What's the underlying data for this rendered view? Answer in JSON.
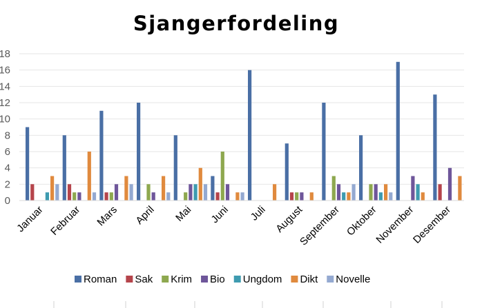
{
  "chart_data": {
    "type": "bar",
    "title": "Sjangerfordeling",
    "xlabel": "",
    "ylabel": "",
    "ylim": [
      0,
      18
    ],
    "yticks": [
      0,
      2,
      4,
      6,
      8,
      10,
      12,
      14,
      16,
      18
    ],
    "grid": true,
    "legend_position": "bottom",
    "categories": [
      "Januar",
      "Februar",
      "Mars",
      "April",
      "Mai",
      "Juni",
      "Juli",
      "August",
      "September",
      "Oktober",
      "November",
      "Desember"
    ],
    "series": [
      {
        "name": "Roman",
        "color": "#4a6fa5",
        "values": [
          9,
          8,
          11,
          12,
          8,
          3,
          16,
          7,
          12,
          8,
          17,
          13
        ]
      },
      {
        "name": "Sak",
        "color": "#b5444b",
        "values": [
          2,
          2,
          1,
          0,
          0,
          1,
          0,
          1,
          0,
          0,
          0,
          2
        ]
      },
      {
        "name": "Krim",
        "color": "#8ea84f",
        "values": [
          0,
          1,
          1,
          2,
          1,
          6,
          0,
          1,
          3,
          2,
          0,
          0
        ]
      },
      {
        "name": "Bio",
        "color": "#6e569a",
        "values": [
          0,
          1,
          2,
          1,
          2,
          2,
          0,
          1,
          2,
          2,
          3,
          4
        ]
      },
      {
        "name": "Ungdom",
        "color": "#3e9bb0",
        "values": [
          1,
          0,
          0,
          0,
          2,
          0,
          0,
          0,
          1,
          1,
          2,
          0
        ]
      },
      {
        "name": "Dikt",
        "color": "#e08a3e",
        "values": [
          3,
          6,
          3,
          3,
          4,
          1,
          2,
          1,
          1,
          2,
          1,
          3
        ]
      },
      {
        "name": "Novelle",
        "color": "#94a9d1",
        "values": [
          2,
          1,
          2,
          1,
          2,
          1,
          0,
          0,
          2,
          1,
          0,
          0
        ]
      }
    ]
  }
}
